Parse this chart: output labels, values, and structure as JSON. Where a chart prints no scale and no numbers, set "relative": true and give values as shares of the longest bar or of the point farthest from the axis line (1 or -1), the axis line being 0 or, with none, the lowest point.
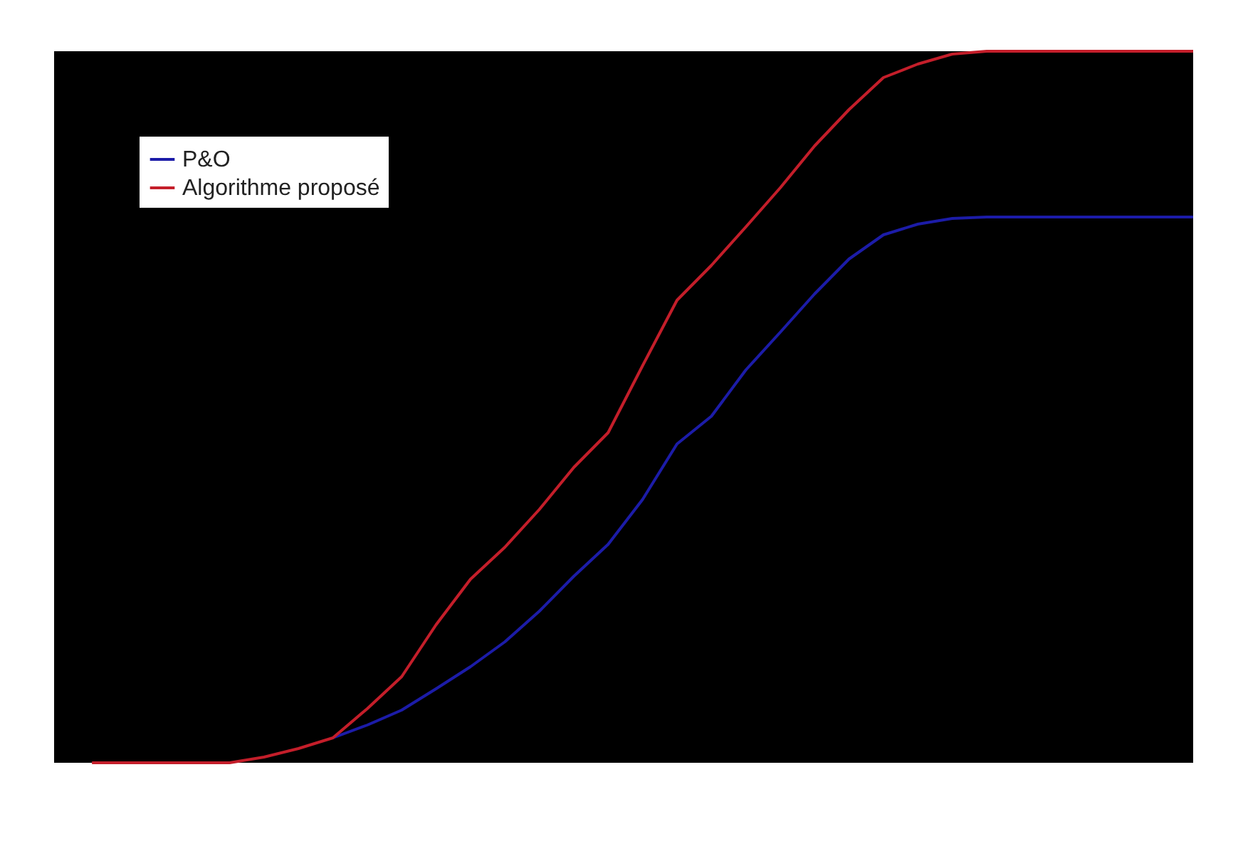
{
  "chart_data": {
    "type": "line",
    "relative": true,
    "tick_labels": false,
    "legend": "top left",
    "grid": false,
    "marker": "none",
    "line_style": "solid",
    "categories": [
      null,
      null,
      null,
      null,
      null,
      null,
      null,
      null,
      null,
      null,
      null,
      null,
      null,
      null,
      null,
      null,
      null,
      null,
      null,
      null,
      null,
      null,
      null,
      null,
      null,
      null,
      null,
      null,
      null,
      null,
      null,
      null,
      null
    ],
    "series": [
      {
        "name": "P&O",
        "color": "#1c1ca8",
        "values": [
          null,
          null,
          null,
          null,
          null,
          null,
          null,
          0.035,
          0.053,
          0.074,
          0.104,
          0.135,
          0.17,
          0.213,
          0.262,
          0.307,
          0.37,
          0.448,
          0.487,
          0.552,
          0.605,
          0.659,
          0.708,
          0.742,
          0.757,
          0.765,
          0.767,
          0.767,
          0.767,
          0.767,
          0.767,
          0.767,
          0.767
        ]
      },
      {
        "name": "Algorithme proposé",
        "color": "#c41e2a",
        "values": [
          0,
          0,
          0,
          0,
          0,
          0.008,
          0.02,
          0.035,
          0.076,
          0.121,
          0.194,
          0.258,
          0.303,
          0.356,
          0.415,
          0.464,
          0.558,
          0.65,
          0.699,
          0.753,
          0.808,
          0.867,
          0.918,
          0.963,
          0.982,
          0.996,
          1,
          1,
          1,
          1,
          1,
          1,
          1
        ]
      }
    ]
  }
}
